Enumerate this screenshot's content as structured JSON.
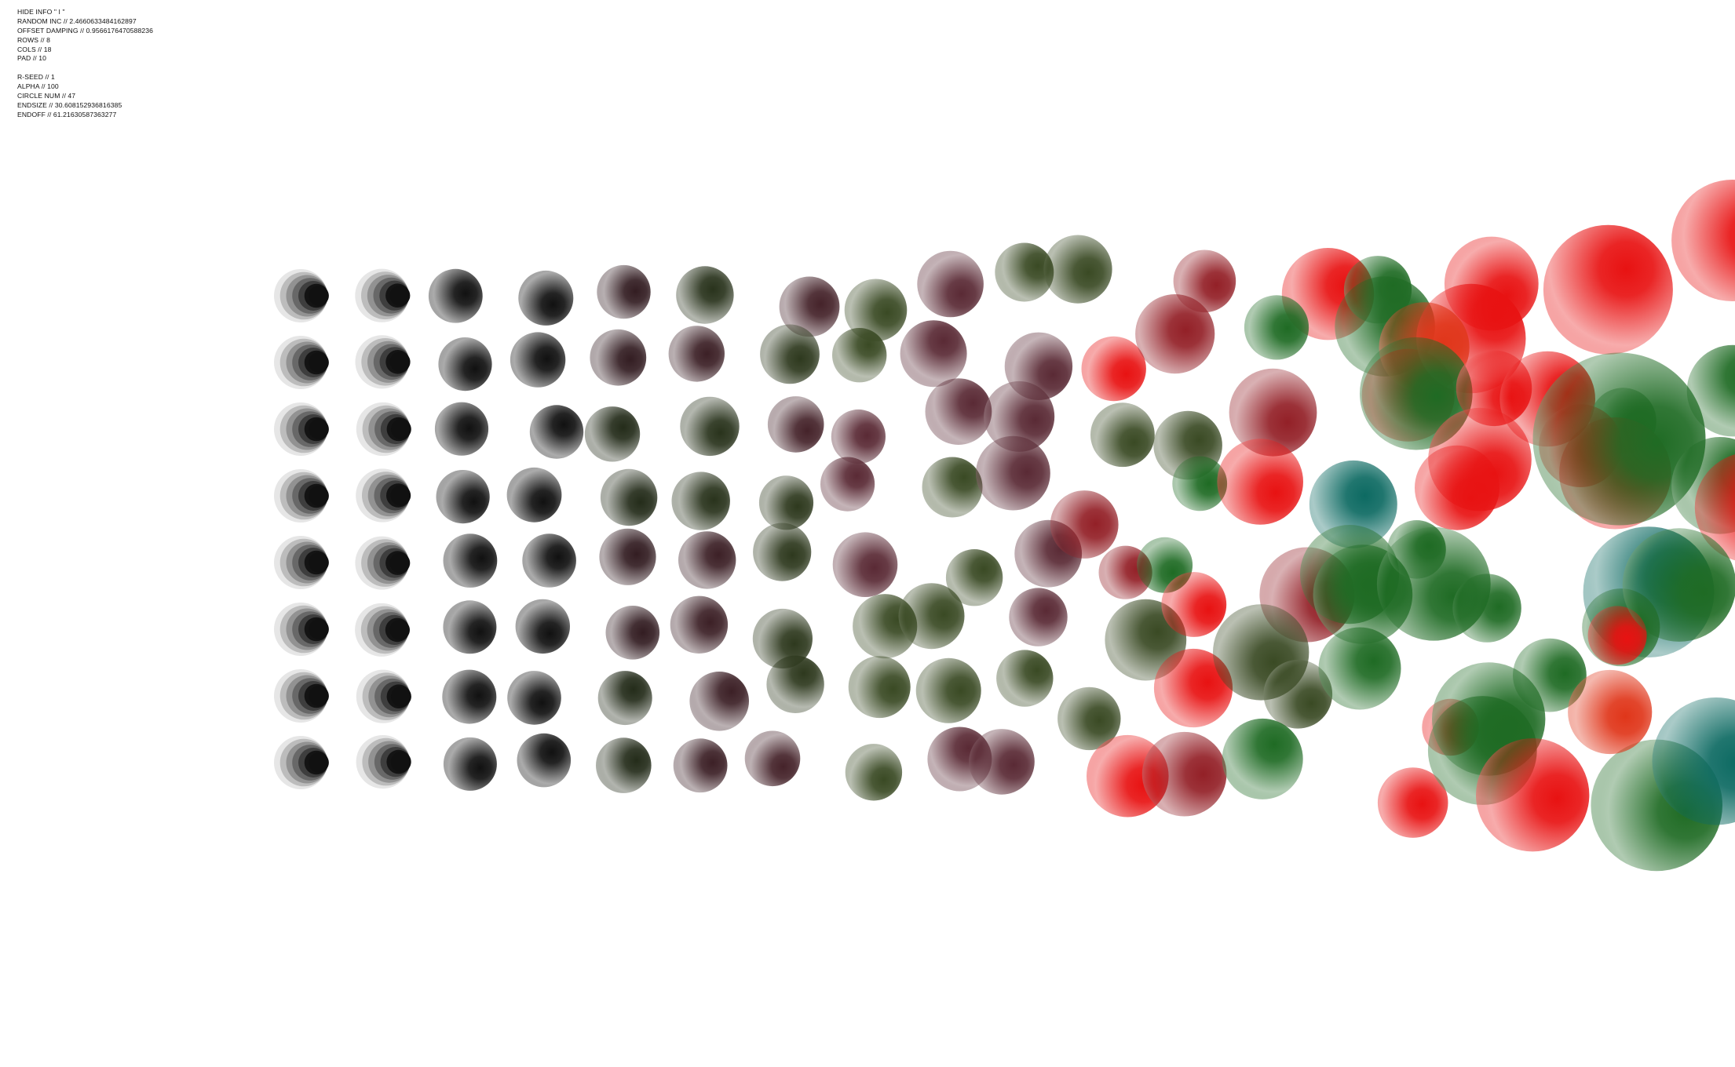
{
  "info": {
    "hide_info": "HIDE INFO \" I \"",
    "random_inc": "RANDOM INC // 2.4660633484162897",
    "offset_damping": "OFFSET DAMPING // 0.9566176470588236",
    "rows": "ROWS // 8",
    "cols": "COLS // 18",
    "pad": "PAD // 10",
    "r_seed": "R-SEED // 1",
    "alpha": "ALPHA // 100",
    "circle_num": "CIRCLE NUM // 47",
    "endsize": "ENDSIZE // 30.608152936816385",
    "endoff": "ENDOFF // 61.21630587363277"
  },
  "artwork": {
    "grid_rows": 8,
    "grid_cols": 18,
    "seed": 1,
    "colors": {
      "background": "#ffffff",
      "start_dark": "#111111",
      "mauve": "#5a2a35",
      "olive": "#3a4a24",
      "green": "#1f6b24",
      "red": "#e81212",
      "teal": "#0d6a62",
      "orange_red": "#e0361a"
    }
  }
}
